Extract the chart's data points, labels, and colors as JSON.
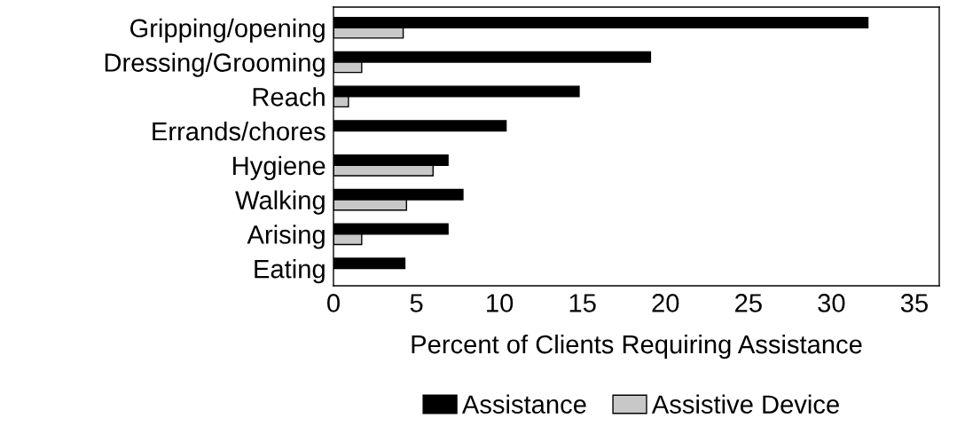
{
  "chart_data": {
    "type": "bar",
    "orientation": "horizontal",
    "categories": [
      "Gripping/opening",
      "Dressing/Grooming",
      "Reach",
      "Errands/chores",
      "Hygiene",
      "Walking",
      "Arising",
      "Eating"
    ],
    "series": [
      {
        "name": "Assistance",
        "color": "#000000",
        "values": [
          32.2,
          19.1,
          14.8,
          10.4,
          6.9,
          7.8,
          6.9,
          4.3
        ]
      },
      {
        "name": "Assistive Device",
        "color": "#c8c8c8",
        "values": [
          4.2,
          1.7,
          0.9,
          null,
          6.0,
          4.4,
          1.7,
          null
        ]
      }
    ],
    "xlabel": "Percent of Clients Requiring Assistance",
    "xlim": [
      0,
      36.5
    ],
    "xticks": [
      0,
      5,
      10,
      15,
      20,
      25,
      30,
      35
    ],
    "grid": false,
    "legend": "bottom"
  }
}
